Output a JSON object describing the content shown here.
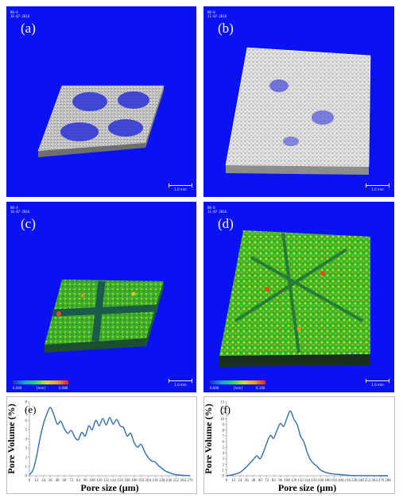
{
  "panels": [
    {
      "label": "(a)",
      "meta": "RB-A\n16-07-2016",
      "scale": "1.0 mm"
    },
    {
      "label": "(b)",
      "meta": "RB-B\n11-07-2016",
      "scale": "1.0 mm"
    },
    {
      "label": "(c)",
      "meta": "RB-A\n16-07-2016",
      "scale": "1.0 mm",
      "cbar_min": "0.000",
      "cbar_mid": "[mm]",
      "cbar_max": "0.086"
    },
    {
      "label": "(d)",
      "meta": "RB-B\n11-07-2016",
      "scale": "1.0 mm",
      "cbar_min": "0.000",
      "cbar_mid": "[mm]",
      "cbar_max": "0.100"
    }
  ],
  "colors": {
    "background": "#0a12f2",
    "curve": "#2f6db3",
    "fiber": "#d8d8d8"
  },
  "chart_data": [
    {
      "type": "line",
      "label": "(e)",
      "xlabel": "Pore size (μm)",
      "ylabel": "Pore Volume (%)",
      "xlim": [
        0,
        276
      ],
      "ylim": [
        0,
        8
      ],
      "xticks": [
        "0",
        "12",
        "24",
        "36",
        "48",
        "60",
        "72",
        "84",
        "96",
        "108",
        "120",
        "132",
        "144",
        "156",
        "168",
        "180",
        "192",
        "204",
        "216",
        "228",
        "240",
        "252",
        "264",
        "276"
      ],
      "yticks": [
        "0",
        "1",
        "2",
        "3",
        "4",
        "5",
        "6",
        "7",
        "8"
      ],
      "x": [
        0,
        6,
        12,
        18,
        24,
        30,
        36,
        42,
        48,
        54,
        60,
        66,
        72,
        78,
        84,
        90,
        96,
        102,
        108,
        114,
        120,
        126,
        132,
        138,
        144,
        150,
        156,
        162,
        168,
        174,
        180,
        186,
        192,
        198,
        204,
        210,
        216,
        222,
        228,
        234,
        240,
        246,
        252,
        258,
        264,
        270,
        276
      ],
      "y": [
        0.1,
        0.6,
        2.0,
        4.0,
        5.6,
        6.7,
        7.4,
        6.6,
        5.6,
        5.9,
        5.1,
        4.6,
        4.9,
        4.2,
        3.9,
        4.7,
        4.3,
        5.4,
        5.0,
        6.0,
        5.4,
        6.2,
        5.5,
        6.3,
        5.6,
        6.1,
        5.4,
        5.2,
        4.3,
        4.6,
        3.6,
        3.1,
        3.4,
        2.6,
        2.0,
        1.6,
        1.5,
        1.1,
        0.8,
        0.5,
        0.35,
        0.2,
        0.12,
        0.08,
        0.05,
        0.03,
        0.02
      ]
    },
    {
      "type": "line",
      "label": "(f)",
      "xlabel": "Pore size (μm)",
      "ylabel": "Pore Volume (%)",
      "xlim": [
        0,
        288
      ],
      "ylim": [
        0,
        13
      ],
      "xticks": [
        "0",
        "12",
        "24",
        "36",
        "48",
        "60",
        "72",
        "84",
        "96",
        "108",
        "120",
        "132",
        "144",
        "156",
        "168",
        "180",
        "192",
        "204",
        "216",
        "228",
        "240",
        "252",
        "264",
        "276",
        "288"
      ],
      "yticks": [
        "0",
        "1",
        "2",
        "3",
        "4",
        "5",
        "6",
        "7",
        "8",
        "9",
        "10",
        "11",
        "12",
        "13"
      ],
      "x": [
        0,
        12,
        24,
        36,
        48,
        54,
        60,
        66,
        72,
        78,
        84,
        90,
        96,
        102,
        108,
        114,
        120,
        126,
        132,
        138,
        144,
        150,
        156,
        162,
        168,
        174,
        180,
        192,
        204,
        216,
        228,
        240,
        252,
        264,
        276,
        288
      ],
      "y": [
        0,
        0.2,
        0.6,
        1.6,
        2.9,
        3.5,
        3.0,
        4.2,
        5.8,
        7.1,
        6.6,
        8.0,
        9.2,
        8.7,
        10.2,
        11.4,
        10.0,
        9.0,
        7.0,
        6.0,
        4.1,
        2.8,
        2.1,
        1.6,
        1.0,
        0.7,
        0.5,
        0.3,
        0.2,
        0.1,
        0.05,
        0.03,
        0.02,
        0.01,
        0.0,
        0.0
      ]
    }
  ]
}
